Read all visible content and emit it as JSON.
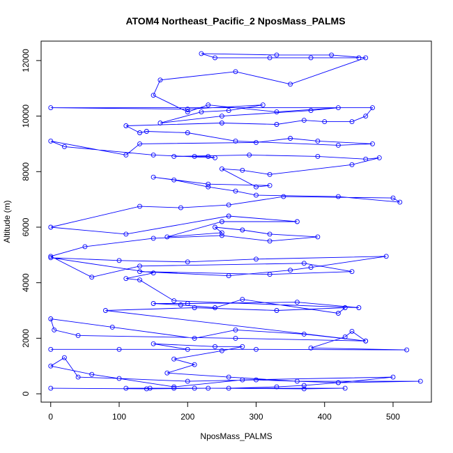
{
  "chart_data": {
    "type": "scatter",
    "title": "ATOM4 Northeast_Pacific_2 NposMass_PALMS",
    "xlabel": "NposMass_PALMS",
    "ylabel": "Altitude (m)",
    "xlim": [
      -14,
      556
    ],
    "ylim": [
      -300,
      12700
    ],
    "x_ticks": [
      0,
      100,
      200,
      300,
      400,
      500
    ],
    "y_ticks": [
      0,
      2000,
      4000,
      6000,
      8000,
      10000,
      12000
    ],
    "connect_points": true,
    "series": [
      {
        "color": "#0000ff",
        "marker": "open-circle",
        "points": [
          [
            0,
            200
          ],
          [
            140,
            180
          ],
          [
            230,
            200
          ],
          [
            370,
            180
          ],
          [
            430,
            200
          ],
          [
            210,
            200
          ],
          [
            180,
            200
          ],
          [
            110,
            200
          ],
          [
            145,
            200
          ],
          [
            260,
            200
          ],
          [
            330,
            250
          ],
          [
            370,
            300
          ],
          [
            420,
            400
          ],
          [
            500,
            600
          ],
          [
            280,
            500
          ],
          [
            180,
            250
          ],
          [
            60,
            700
          ],
          [
            0,
            1000
          ],
          [
            20,
            1300
          ],
          [
            40,
            600
          ],
          [
            100,
            550
          ],
          [
            200,
            450
          ],
          [
            300,
            500
          ],
          [
            420,
            400
          ],
          [
            540,
            450
          ],
          [
            360,
            450
          ],
          [
            260,
            600
          ],
          [
            170,
            750
          ],
          [
            210,
            1050
          ],
          [
            180,
            1250
          ],
          [
            250,
            1550
          ],
          [
            280,
            1700
          ],
          [
            240,
            1700
          ],
          [
            150,
            1800
          ],
          [
            200,
            1600
          ],
          [
            0,
            1600
          ],
          [
            100,
            1600
          ],
          [
            300,
            1600
          ],
          [
            520,
            1580
          ],
          [
            380,
            1650
          ],
          [
            430,
            2050
          ],
          [
            440,
            2250
          ],
          [
            460,
            1900
          ],
          [
            370,
            2150
          ],
          [
            270,
            2300
          ],
          [
            210,
            2000
          ],
          [
            90,
            2400
          ],
          [
            0,
            2700
          ],
          [
            5,
            2300
          ],
          [
            40,
            2100
          ],
          [
            270,
            2000
          ],
          [
            460,
            1900
          ],
          [
            80,
            3000
          ],
          [
            210,
            3100
          ],
          [
            330,
            3000
          ],
          [
            430,
            3100
          ],
          [
            420,
            2900
          ],
          [
            280,
            3400
          ],
          [
            240,
            3100
          ],
          [
            190,
            3200
          ],
          [
            150,
            3250
          ],
          [
            200,
            3250
          ],
          [
            360,
            3300
          ],
          [
            450,
            3100
          ],
          [
            180,
            3350
          ],
          [
            130,
            4100
          ],
          [
            110,
            4150
          ],
          [
            150,
            4350
          ],
          [
            0,
            4900
          ],
          [
            100,
            4800
          ],
          [
            200,
            4750
          ],
          [
            300,
            4850
          ],
          [
            490,
            4950
          ],
          [
            380,
            4550
          ],
          [
            350,
            4450
          ],
          [
            260,
            4250
          ],
          [
            130,
            4400
          ],
          [
            320,
            4300
          ],
          [
            440,
            4400
          ],
          [
            370,
            4700
          ],
          [
            130,
            4600
          ],
          [
            60,
            4200
          ],
          [
            0,
            4950
          ],
          [
            50,
            5300
          ],
          [
            150,
            5600
          ],
          [
            250,
            5700
          ],
          [
            320,
            5500
          ],
          [
            390,
            5650
          ],
          [
            320,
            5750
          ],
          [
            280,
            5900
          ],
          [
            240,
            6000
          ],
          [
            250,
            5800
          ],
          [
            170,
            5650
          ],
          [
            250,
            6200
          ],
          [
            360,
            6200
          ],
          [
            260,
            6400
          ],
          [
            110,
            5750
          ],
          [
            0,
            6000
          ],
          [
            130,
            6750
          ],
          [
            190,
            6700
          ],
          [
            260,
            6800
          ],
          [
            340,
            7100
          ],
          [
            500,
            7050
          ],
          [
            510,
            6900
          ],
          [
            420,
            7100
          ],
          [
            300,
            7150
          ],
          [
            270,
            7300
          ],
          [
            230,
            7450
          ],
          [
            180,
            7700
          ],
          [
            150,
            7800
          ],
          [
            230,
            7550
          ],
          [
            320,
            7500
          ],
          [
            300,
            7450
          ],
          [
            250,
            8100
          ],
          [
            280,
            8050
          ],
          [
            320,
            7900
          ],
          [
            440,
            8250
          ],
          [
            480,
            8500
          ],
          [
            460,
            8450
          ],
          [
            390,
            8550
          ],
          [
            290,
            8600
          ],
          [
            180,
            8550
          ],
          [
            210,
            8550
          ],
          [
            230,
            8550
          ],
          [
            240,
            8500
          ],
          [
            150,
            8600
          ],
          [
            20,
            8900
          ],
          [
            0,
            9100
          ],
          [
            110,
            8600
          ],
          [
            130,
            9000
          ],
          [
            300,
            9050
          ],
          [
            350,
            9200
          ],
          [
            390,
            9100
          ],
          [
            470,
            9000
          ],
          [
            420,
            8950
          ],
          [
            270,
            9100
          ],
          [
            200,
            9400
          ],
          [
            140,
            9450
          ],
          [
            130,
            9400
          ],
          [
            110,
            9650
          ],
          [
            250,
            9750
          ],
          [
            330,
            9700
          ],
          [
            370,
            9850
          ],
          [
            400,
            9800
          ],
          [
            440,
            9800
          ],
          [
            460,
            10000
          ],
          [
            470,
            10300
          ],
          [
            0,
            10300
          ],
          [
            200,
            10250
          ],
          [
            310,
            10400
          ],
          [
            260,
            10200
          ],
          [
            220,
            10150
          ],
          [
            160,
            9750
          ],
          [
            250,
            10000
          ],
          [
            380,
            10200
          ],
          [
            420,
            10300
          ],
          [
            330,
            10150
          ],
          [
            230,
            10400
          ],
          [
            200,
            10150
          ],
          [
            150,
            10750
          ],
          [
            160,
            11300
          ],
          [
            270,
            11600
          ],
          [
            350,
            11150
          ],
          [
            460,
            12100
          ],
          [
            410,
            12200
          ],
          [
            330,
            12200
          ],
          [
            220,
            12250
          ],
          [
            240,
            12100
          ],
          [
            320,
            12100
          ],
          [
            380,
            12100
          ],
          [
            450,
            12100
          ]
        ]
      }
    ]
  }
}
